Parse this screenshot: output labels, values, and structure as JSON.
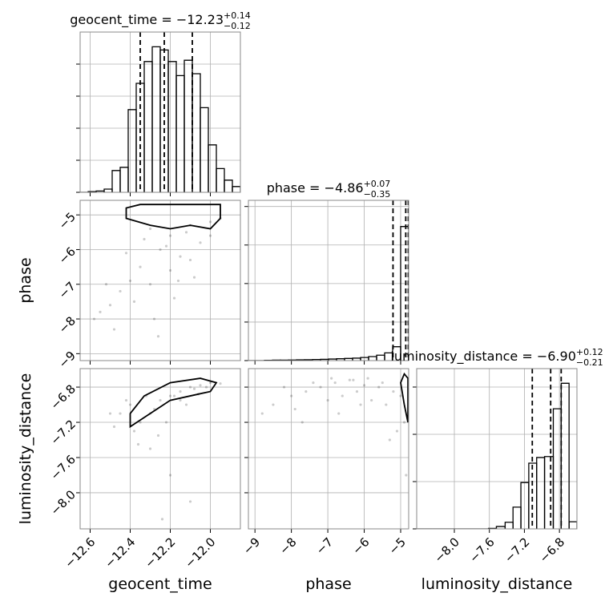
{
  "chart_data": [
    {
      "type": "histogram",
      "title": "geocent_time = −12.23",
      "title_plus": "+0.14",
      "title_minus": "−0.12",
      "bins": [
        -12.65,
        -12.61,
        -12.57,
        -12.53,
        -12.49,
        -12.45,
        -12.41,
        -12.37,
        -12.33,
        -12.29,
        -12.25,
        -12.21,
        -12.17,
        -12.13,
        -12.09,
        -12.05,
        -12.01,
        -11.97,
        -11.93,
        -11.89,
        -11.85
      ],
      "counts": [
        0,
        1,
        2,
        5,
        34,
        39,
        129,
        170,
        204,
        227,
        222,
        204,
        182,
        206,
        185,
        132,
        74,
        37,
        19,
        9
      ],
      "quantiles": [
        -12.35,
        -12.23,
        -12.09
      ],
      "xlim": [
        -12.65,
        -11.85
      ],
      "ylim": [
        0,
        250
      ],
      "xticks": [
        {
          "value": -12.6,
          "label": "−12.6"
        },
        {
          "value": -12.4,
          "label": "−12.4"
        },
        {
          "value": -12.2,
          "label": "−12.2"
        },
        {
          "value": -12.0,
          "label": "−12.0"
        }
      ],
      "yticks": [
        0,
        50,
        100,
        150,
        200
      ],
      "xticklabels": false,
      "yticklabels": false,
      "grid": true
    },
    {
      "type": "scatter",
      "ylabel": "phase",
      "x": [
        -12.3,
        -12.2,
        -12.1,
        -12.0,
        -11.95,
        -12.25,
        -12.15,
        -12.05,
        -12.35,
        -12.4,
        -12.45,
        -12.5,
        -12.55,
        -12.3,
        -12.2,
        -12.1,
        -12.38,
        -12.28,
        -12.18,
        -12.08,
        -12.48,
        -12.58,
        -12.33,
        -12.22,
        -12.12,
        -12.42,
        -12.52,
        -12.26,
        -12.16,
        -12.0
      ],
      "y": [
        -5.4,
        -5.6,
        -5.3,
        -5.2,
        -5.1,
        -6.0,
        -6.2,
        -5.8,
        -6.5,
        -6.9,
        -7.2,
        -7.6,
        -7.8,
        -7.0,
        -6.6,
        -6.3,
        -7.5,
        -8.0,
        -7.4,
        -6.8,
        -8.3,
        -8.0,
        -5.7,
        -5.9,
        -5.5,
        -6.1,
        -7.0,
        -8.5,
        -6.9,
        -5.6
      ],
      "contour": {
        "x": [
          -12.42,
          -12.3,
          -12.2,
          -12.1,
          -12.0,
          -11.95,
          -11.95,
          -12.05,
          -12.15,
          -12.25,
          -12.35,
          -12.42
        ],
        "y": [
          -5.1,
          -5.3,
          -5.4,
          -5.3,
          -5.4,
          -5.1,
          -4.7,
          -4.7,
          -4.7,
          -4.7,
          -4.7,
          -4.8
        ]
      },
      "xlim": [
        -12.65,
        -11.85
      ],
      "ylim": [
        -9.2,
        -4.58
      ],
      "xticks": [
        {
          "value": -12.6,
          "label": "−12.6"
        },
        {
          "value": -12.4,
          "label": "−12.4"
        },
        {
          "value": -12.2,
          "label": "−12.2"
        },
        {
          "value": -12.0,
          "label": "−12.0"
        }
      ],
      "yticks": [
        {
          "value": -5,
          "label": "−5"
        },
        {
          "value": -6,
          "label": "−6"
        },
        {
          "value": -7,
          "label": "−7"
        },
        {
          "value": -8,
          "label": "−8"
        },
        {
          "value": -9,
          "label": "−9"
        }
      ],
      "xticklabels": false,
      "yticklabels": true,
      "grid": true
    },
    {
      "type": "histogram",
      "title": "phase = −4.86",
      "title_plus": "+0.07",
      "title_minus": "−0.35",
      "bins": [
        -9.18,
        -8.96,
        -8.74,
        -8.52,
        -8.3,
        -8.08,
        -7.86,
        -7.64,
        -7.42,
        -7.2,
        -6.98,
        -6.76,
        -6.54,
        -6.32,
        -6.1,
        -5.88,
        -5.66,
        -5.44,
        -5.22,
        -5.0,
        -4.78
      ],
      "counts": [
        0,
        0,
        2,
        3,
        3,
        4,
        5,
        6,
        7,
        8,
        10,
        12,
        14,
        16,
        20,
        26,
        35,
        50,
        90,
        870
      ],
      "quantiles": [
        -5.21,
        -4.86,
        -4.79
      ],
      "xlim": [
        -9.18,
        -4.78
      ],
      "ylim": [
        0,
        1040
      ],
      "xticks": [
        {
          "value": -9,
          "label": "−9"
        },
        {
          "value": -8,
          "label": "−8"
        },
        {
          "value": -7,
          "label": "−7"
        },
        {
          "value": -6,
          "label": "−6"
        },
        {
          "value": -5,
          "label": "−5"
        }
      ],
      "yticks": [
        0,
        250,
        500,
        750,
        1000
      ],
      "xticklabels": false,
      "yticklabels": false,
      "grid": true
    },
    {
      "type": "scatter",
      "xlabel": "geocent_time",
      "ylabel": "luminosity_distance",
      "x": [
        -12.45,
        -12.4,
        -12.35,
        -12.3,
        -12.25,
        -12.2,
        -12.15,
        -12.1,
        -12.05,
        -12.0,
        -11.95,
        -12.38,
        -12.28,
        -12.18,
        -12.08,
        -12.42,
        -12.32,
        -12.22,
        -12.12,
        -12.02,
        -12.48,
        -12.3,
        -12.2,
        -12.1,
        -12.36,
        -12.26,
        -12.5,
        -12.15,
        -12.06,
        -12.24
      ],
      "y": [
        -7.1,
        -7.0,
        -7.2,
        -7.1,
        -6.95,
        -6.9,
        -6.85,
        -6.8,
        -6.78,
        -6.75,
        -6.76,
        -7.3,
        -7.05,
        -6.9,
        -6.82,
        -6.95,
        -6.9,
        -7.2,
        -7.0,
        -6.8,
        -7.25,
        -7.5,
        -7.8,
        -8.1,
        -7.45,
        -7.35,
        -7.1,
        -6.95,
        -6.88,
        -8.3
      ],
      "contour": {
        "x": [
          -12.4,
          -12.3,
          -12.2,
          -12.1,
          -12.0,
          -11.97,
          -12.05,
          -12.2,
          -12.33,
          -12.4
        ],
        "y": [
          -7.25,
          -7.1,
          -6.95,
          -6.9,
          -6.85,
          -6.75,
          -6.7,
          -6.75,
          -6.9,
          -7.1
        ]
      },
      "xlim": [
        -12.65,
        -11.85
      ],
      "ylim": [
        -8.41,
        -6.59
      ],
      "xticks": [
        {
          "value": -12.6,
          "label": "−12.6"
        },
        {
          "value": -12.4,
          "label": "−12.4"
        },
        {
          "value": -12.2,
          "label": "−12.2"
        },
        {
          "value": -12.0,
          "label": "−12.0"
        }
      ],
      "yticks": [
        {
          "value": -6.8,
          "label": "−6.8"
        },
        {
          "value": -7.2,
          "label": "−7.2"
        },
        {
          "value": -7.6,
          "label": "−7.6"
        },
        {
          "value": -8.0,
          "label": "−8.0"
        }
      ],
      "xticklabels": true,
      "yticklabels": true,
      "grid": true
    },
    {
      "type": "scatter",
      "xlabel": "phase",
      "x": [
        -8.5,
        -8.0,
        -7.6,
        -7.2,
        -6.8,
        -6.4,
        -6.0,
        -5.6,
        -5.2,
        -5.0,
        -8.8,
        -7.9,
        -7.0,
        -6.6,
        -6.2,
        -5.8,
        -5.4,
        -4.9,
        -8.2,
        -7.4,
        -6.9,
        -6.3,
        -5.9,
        -5.5,
        -5.1,
        -7.7,
        -6.7,
        -6.1,
        -5.3,
        -4.85
      ],
      "y": [
        -7.0,
        -6.9,
        -6.85,
        -6.8,
        -6.75,
        -6.72,
        -6.78,
        -6.8,
        -6.85,
        -6.9,
        -7.1,
        -7.05,
        -6.95,
        -6.9,
        -6.85,
        -6.95,
        -7.0,
        -7.2,
        -6.8,
        -6.75,
        -6.7,
        -6.72,
        -6.7,
        -6.75,
        -7.3,
        -7.2,
        -7.1,
        -7.0,
        -7.4,
        -7.8
      ],
      "contour": {
        "x": [
          -5.0,
          -4.9,
          -4.8,
          -4.8,
          -4.9,
          -5.0
        ],
        "y": [
          -6.75,
          -7.0,
          -7.2,
          -6.7,
          -6.65,
          -6.75
        ]
      },
      "xlim": [
        -9.18,
        -4.78
      ],
      "ylim": [
        -8.41,
        -6.59
      ],
      "xticks": [
        {
          "value": -9,
          "label": "−9"
        },
        {
          "value": -8,
          "label": "−8"
        },
        {
          "value": -7,
          "label": "−7"
        },
        {
          "value": -6,
          "label": "−6"
        },
        {
          "value": -5,
          "label": "−5"
        }
      ],
      "yticks": [
        -6.8,
        -7.2,
        -7.6,
        -8.0
      ],
      "xticklabels": true,
      "yticklabels": false,
      "grid": true
    },
    {
      "type": "histogram",
      "xlabel": "luminosity_distance",
      "title": "luminosity_distance = −6.90",
      "title_plus": "+0.12",
      "title_minus": "−0.21",
      "bins": [
        -8.43,
        -8.34,
        -8.25,
        -8.16,
        -8.06,
        -7.97,
        -7.88,
        -7.79,
        -7.7,
        -7.61,
        -7.52,
        -7.42,
        -7.33,
        -7.24,
        -7.15,
        -7.06,
        -6.97,
        -6.87,
        -6.78,
        -6.69,
        -6.6
      ],
      "counts": [
        0,
        0,
        0,
        0,
        0,
        0,
        0,
        0,
        0,
        1,
        5,
        14,
        46,
        98,
        139,
        151,
        153,
        254,
        308,
        15
      ],
      "quantiles": [
        -7.11,
        -6.9,
        -6.78
      ],
      "xlim": [
        -8.43,
        -6.6
      ],
      "ylim": [
        0,
        339
      ],
      "xticks": [
        {
          "value": -8.0,
          "label": "−8.0"
        },
        {
          "value": -7.6,
          "label": "−7.6"
        },
        {
          "value": -7.2,
          "label": "−7.2"
        },
        {
          "value": -6.8,
          "label": "−6.8"
        }
      ],
      "yticks": [
        0,
        100,
        200,
        300
      ],
      "xticklabels": true,
      "yticklabels": false,
      "grid": true
    }
  ]
}
